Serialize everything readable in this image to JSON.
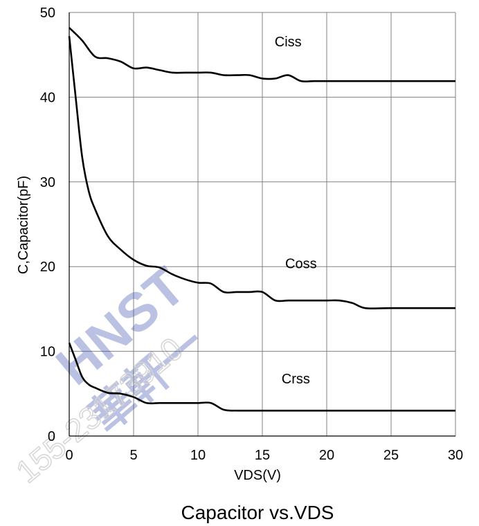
{
  "chart_data": {
    "type": "line",
    "title": "Capacitor vs.VDS",
    "xlabel": "VDS(V)",
    "ylabel": "C,Capacitor(pF)",
    "xlim": [
      0,
      30
    ],
    "ylim": [
      0,
      50
    ],
    "x_ticks": [
      0,
      5,
      10,
      15,
      20,
      25,
      30
    ],
    "y_ticks": [
      0,
      10,
      20,
      30,
      40,
      50
    ],
    "grid": true,
    "series": [
      {
        "name": "Ciss",
        "x": [
          0,
          1,
          2,
          3,
          4,
          5,
          6,
          7,
          8,
          9,
          10,
          11,
          12,
          13,
          14,
          15,
          16,
          17,
          18,
          19,
          20,
          22,
          25,
          30
        ],
        "y": [
          48.2,
          46.7,
          44.8,
          44.6,
          44.2,
          43.4,
          43.5,
          43.2,
          42.9,
          42.9,
          42.9,
          42.9,
          42.6,
          42.6,
          42.6,
          42.2,
          42.2,
          42.6,
          41.9,
          41.9,
          41.9,
          41.9,
          41.9,
          41.9
        ]
      },
      {
        "name": "Coss",
        "x": [
          0,
          0.5,
          1,
          1.5,
          2,
          3,
          4,
          5,
          6,
          7,
          8,
          9,
          10,
          11,
          12,
          13,
          14,
          15,
          16,
          17,
          18,
          20,
          21,
          22,
          23,
          25,
          30
        ],
        "y": [
          47.2,
          40,
          33,
          29,
          26.8,
          23.6,
          22,
          20.8,
          20.1,
          19.9,
          19.1,
          18.5,
          18.1,
          18.0,
          17.0,
          17.0,
          17.0,
          17.0,
          16.0,
          16.0,
          16.0,
          16.0,
          16.0,
          15.7,
          15.1,
          15.1,
          15.1
        ]
      },
      {
        "name": "Crss",
        "x": [
          0,
          0.5,
          1,
          1.5,
          2,
          3,
          4,
          5,
          6,
          7,
          8,
          9,
          10,
          11,
          12,
          13,
          14,
          15,
          20,
          25,
          30
        ],
        "y": [
          11.0,
          9.0,
          7.0,
          6.1,
          5.7,
          5.1,
          5.0,
          4.6,
          3.9,
          3.9,
          3.9,
          3.9,
          3.9,
          3.9,
          3.1,
          3.0,
          3.0,
          3.0,
          3.0,
          3.0,
          3.0
        ]
      }
    ],
    "series_label_positions": [
      {
        "name": "Ciss",
        "x": 17,
        "y": 46
      },
      {
        "name": "Coss",
        "x": 18,
        "y": 19.8
      },
      {
        "name": "Crss",
        "x": 17.6,
        "y": 6.2
      }
    ]
  },
  "watermark": {
    "logo_text": "HNST",
    "chinese_text": "華軒一",
    "phone_text": "155-23173910"
  }
}
